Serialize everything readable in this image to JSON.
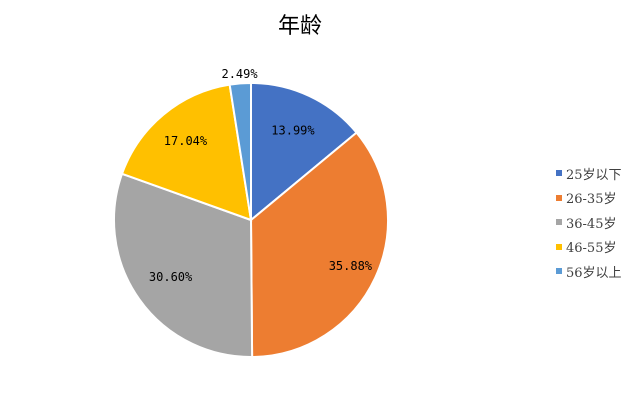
{
  "chart_data": {
    "type": "pie",
    "title": "年龄",
    "categories": [
      "25岁以下",
      "26-35岁",
      "36-45岁",
      "46-55岁",
      "56岁以上"
    ],
    "values": [
      13.99,
      35.88,
      30.6,
      17.04,
      2.49
    ],
    "labels": [
      "13.99%",
      "35.88%",
      "30.60%",
      "17.04%",
      "2.49%"
    ],
    "colors": [
      "#4472C4",
      "#ED7D31",
      "#A5A5A5",
      "#FFC000",
      "#5B9BD5"
    ],
    "start": "top, clockwise",
    "legend": "right"
  }
}
